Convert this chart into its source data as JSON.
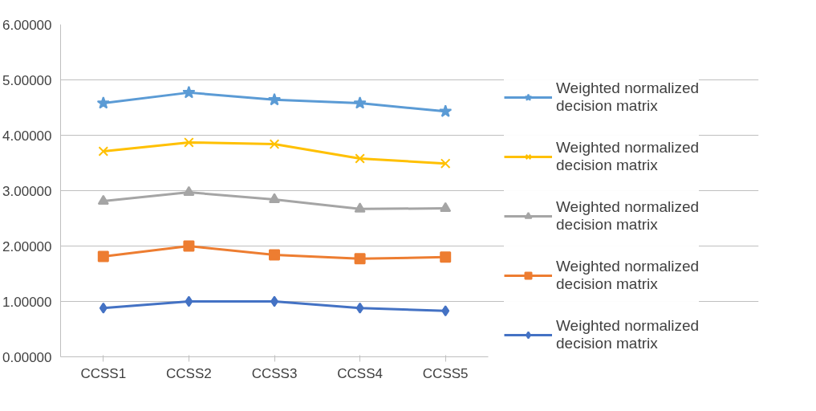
{
  "chart_data": {
    "type": "line",
    "categories": [
      "CCSS1",
      "CCSS2",
      "CCSS3",
      "CCSS4",
      "CCSS5"
    ],
    "series": [
      {
        "name": "Weighted normalized decision matrix",
        "color": "#5b9bd5",
        "marker": "star",
        "values": [
          4.58,
          4.77,
          4.64,
          4.58,
          4.43
        ]
      },
      {
        "name": "Weighted normalized decision matrix",
        "color": "#ffc000",
        "marker": "cross",
        "values": [
          3.71,
          3.87,
          3.84,
          3.58,
          3.49
        ]
      },
      {
        "name": "Weighted normalized decision matrix",
        "color": "#a5a5a5",
        "marker": "triangle",
        "values": [
          2.81,
          2.97,
          2.84,
          2.67,
          2.68
        ]
      },
      {
        "name": "Weighted normalized decision matrix",
        "color": "#ed7d31",
        "marker": "square",
        "values": [
          1.81,
          2.0,
          1.84,
          1.77,
          1.8
        ]
      },
      {
        "name": "Weighted normalized decision matrix",
        "color": "#4472c4",
        "marker": "diamond",
        "values": [
          0.88,
          1.0,
          1.0,
          0.88,
          0.83
        ]
      }
    ],
    "ylim": [
      0,
      6
    ],
    "yticks": [
      {
        "value": 0,
        "label": "0.00000"
      },
      {
        "value": 1,
        "label": "1.00000"
      },
      {
        "value": 2,
        "label": "2.00000"
      },
      {
        "value": 3,
        "label": "3.00000"
      },
      {
        "value": 4,
        "label": "4.00000"
      },
      {
        "value": 5,
        "label": "5.00000"
      },
      {
        "value": 6,
        "label": "6.00000"
      }
    ],
    "grid": "y",
    "legend": "right",
    "line_style": "solid"
  }
}
